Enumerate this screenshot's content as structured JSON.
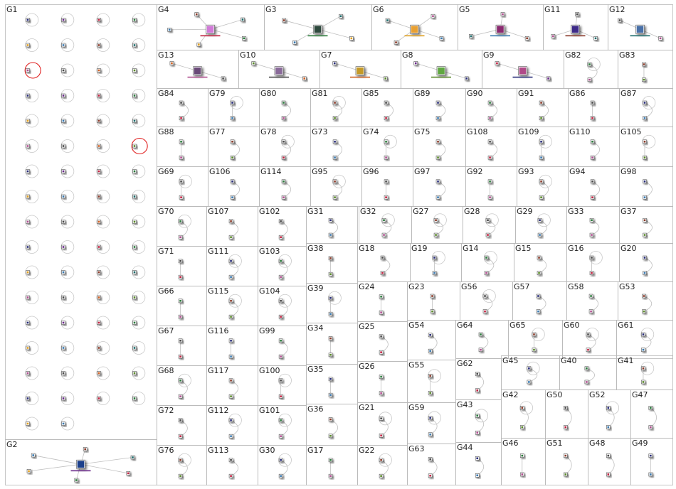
{
  "groups": [
    {
      "label": "G1",
      "type": "grid",
      "cols": 4,
      "rows": 17,
      "nodes": 66,
      "red_loops": 2
    },
    {
      "label": "G2",
      "type": "hub",
      "nodes": 7,
      "hub_color": "#1c3f8c"
    },
    {
      "label": "G4",
      "type": "hub",
      "nodes": 6,
      "hub_color": "#d17ad8"
    },
    {
      "label": "G3",
      "type": "hub",
      "nodes": 5,
      "hub_color": "#2e4a3c"
    },
    {
      "label": "G6",
      "type": "hub",
      "nodes": 5,
      "hub_color": "#e8a030"
    },
    {
      "label": "G5",
      "type": "hub",
      "nodes": 4,
      "hub_color": "#8a2a6f"
    },
    {
      "label": "G11",
      "type": "hub",
      "nodes": 4,
      "hub_color": "#3d2a88"
    },
    {
      "label": "G12",
      "type": "hub",
      "nodes": 3,
      "hub_color": "#4a6fa8"
    },
    {
      "label": "G13",
      "type": "hub",
      "nodes": 3,
      "hub_color": "#6a4a78"
    },
    {
      "label": "G10",
      "type": "hub",
      "nodes": 3,
      "hub_color": "#8a6a9a"
    },
    {
      "label": "G7",
      "type": "hub",
      "nodes": 3,
      "hub_color": "#c59a25"
    },
    {
      "label": "G8",
      "type": "hub",
      "nodes": 3,
      "hub_color": "#5fa840"
    },
    {
      "label": "G9",
      "type": "hub",
      "nodes": 3,
      "hub_color": "#b04888"
    },
    {
      "label": "G82",
      "type": "pair"
    },
    {
      "label": "G83",
      "type": "pair"
    },
    {
      "label": "G84",
      "type": "pair"
    },
    {
      "label": "G79",
      "type": "pair"
    },
    {
      "label": "G80",
      "type": "pair"
    },
    {
      "label": "G81",
      "type": "pair"
    },
    {
      "label": "G85",
      "type": "pair"
    },
    {
      "label": "G89",
      "type": "pair"
    },
    {
      "label": "G90",
      "type": "pair"
    },
    {
      "label": "G91",
      "type": "pair"
    },
    {
      "label": "G86",
      "type": "pair"
    },
    {
      "label": "G87",
      "type": "pair"
    },
    {
      "label": "G88",
      "type": "pair"
    },
    {
      "label": "G77",
      "type": "pair"
    },
    {
      "label": "G78",
      "type": "pair"
    },
    {
      "label": "G73",
      "type": "pair"
    },
    {
      "label": "G74",
      "type": "pair"
    },
    {
      "label": "G75",
      "type": "pair"
    },
    {
      "label": "G108",
      "type": "pair"
    },
    {
      "label": "G109",
      "type": "pair"
    },
    {
      "label": "G110",
      "type": "pair"
    },
    {
      "label": "G105",
      "type": "pair"
    },
    {
      "label": "G69",
      "type": "pair"
    },
    {
      "label": "G106",
      "type": "pair"
    },
    {
      "label": "G114",
      "type": "pair"
    },
    {
      "label": "G95",
      "type": "pair"
    },
    {
      "label": "G96",
      "type": "pair"
    },
    {
      "label": "G97",
      "type": "pair"
    },
    {
      "label": "G92",
      "type": "pair"
    },
    {
      "label": "G93",
      "type": "pair"
    },
    {
      "label": "G94",
      "type": "pair"
    },
    {
      "label": "G98",
      "type": "pair"
    },
    {
      "label": "G70",
      "type": "pair"
    },
    {
      "label": "G107",
      "type": "pair"
    },
    {
      "label": "G102",
      "type": "pair"
    },
    {
      "label": "G31",
      "type": "pair"
    },
    {
      "label": "G32",
      "type": "pair"
    },
    {
      "label": "G27",
      "type": "pair"
    },
    {
      "label": "G28",
      "type": "pair"
    },
    {
      "label": "G29",
      "type": "pair"
    },
    {
      "label": "G33",
      "type": "pair"
    },
    {
      "label": "G37",
      "type": "pair"
    },
    {
      "label": "G71",
      "type": "pair"
    },
    {
      "label": "G111",
      "type": "pair"
    },
    {
      "label": "G103",
      "type": "pair"
    },
    {
      "label": "G38",
      "type": "pair"
    },
    {
      "label": "G18",
      "type": "pair"
    },
    {
      "label": "G19",
      "type": "pair"
    },
    {
      "label": "G14",
      "type": "pair"
    },
    {
      "label": "G15",
      "type": "pair"
    },
    {
      "label": "G16",
      "type": "pair"
    },
    {
      "label": "G20",
      "type": "pair"
    },
    {
      "label": "G66",
      "type": "pair"
    },
    {
      "label": "G115",
      "type": "pair"
    },
    {
      "label": "G104",
      "type": "pair"
    },
    {
      "label": "G39",
      "type": "pair"
    },
    {
      "label": "G24",
      "type": "pair"
    },
    {
      "label": "G23",
      "type": "pair"
    },
    {
      "label": "G56",
      "type": "pair"
    },
    {
      "label": "G57",
      "type": "pair"
    },
    {
      "label": "G58",
      "type": "pair"
    },
    {
      "label": "G53",
      "type": "pair"
    },
    {
      "label": "G67",
      "type": "pair"
    },
    {
      "label": "G116",
      "type": "pair"
    },
    {
      "label": "G99",
      "type": "pair"
    },
    {
      "label": "G34",
      "type": "pair"
    },
    {
      "label": "G25",
      "type": "pair"
    },
    {
      "label": "G54",
      "type": "pair"
    },
    {
      "label": "G64",
      "type": "pair"
    },
    {
      "label": "G65",
      "type": "pair"
    },
    {
      "label": "G60",
      "type": "pair"
    },
    {
      "label": "G61",
      "type": "pair"
    },
    {
      "label": "G68",
      "type": "pair"
    },
    {
      "label": "G117",
      "type": "pair"
    },
    {
      "label": "G100",
      "type": "pair"
    },
    {
      "label": "G35",
      "type": "pair"
    },
    {
      "label": "G26",
      "type": "pair"
    },
    {
      "label": "G55",
      "type": "pair"
    },
    {
      "label": "G62",
      "type": "pair"
    },
    {
      "label": "G45",
      "type": "pair"
    },
    {
      "label": "G40",
      "type": "pair"
    },
    {
      "label": "G41",
      "type": "pair"
    },
    {
      "label": "G72",
      "type": "pair"
    },
    {
      "label": "G112",
      "type": "pair"
    },
    {
      "label": "G101",
      "type": "pair"
    },
    {
      "label": "G36",
      "type": "pair"
    },
    {
      "label": "G21",
      "type": "pair"
    },
    {
      "label": "G59",
      "type": "pair"
    },
    {
      "label": "G43",
      "type": "pair"
    },
    {
      "label": "G42",
      "type": "pair"
    },
    {
      "label": "G50",
      "type": "pair"
    },
    {
      "label": "G52",
      "type": "pair"
    },
    {
      "label": "G47",
      "type": "pair"
    },
    {
      "label": "G76",
      "type": "pair"
    },
    {
      "label": "G113",
      "type": "pair"
    },
    {
      "label": "G30",
      "type": "pair"
    },
    {
      "label": "G17",
      "type": "pair"
    },
    {
      "label": "G22",
      "type": "pair"
    },
    {
      "label": "G63",
      "type": "pair"
    },
    {
      "label": "G44",
      "type": "pair"
    },
    {
      "label": "G46",
      "type": "pair"
    },
    {
      "label": "G51",
      "type": "pair"
    },
    {
      "label": "G48",
      "type": "pair"
    },
    {
      "label": "G49",
      "type": "pair"
    }
  ],
  "colors": {
    "border": "#b8b8b8",
    "edge": "#bfbfbf",
    "self_loop": "#c8c8c8",
    "self_loop_highlight": "#e02020",
    "label_text": "#222222",
    "node_palette": [
      "#2a2f7a",
      "#6a2a8a",
      "#c02040",
      "#2a7a3a",
      "#e0a020",
      "#3a7ab0",
      "#8a3a2a",
      "#1a6a6a",
      "#b05090",
      "#4a4a4a",
      "#d06020",
      "#5a8a2a"
    ]
  }
}
